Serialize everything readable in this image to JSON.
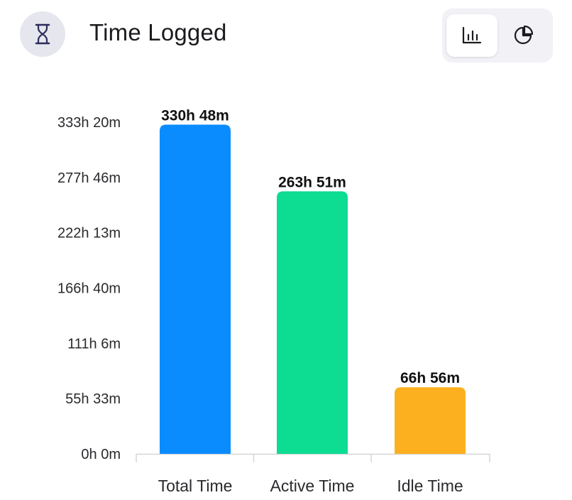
{
  "header": {
    "title": "Time Logged",
    "title_icon": "hourglass-icon",
    "toggle": {
      "options": [
        {
          "icon": "bar-chart-icon",
          "active": true
        },
        {
          "icon": "pie-chart-icon",
          "active": false
        }
      ]
    }
  },
  "colors": {
    "total": "#0a8cff",
    "active": "#0ddc93",
    "idle": "#fcb01f"
  },
  "chart_data": {
    "type": "bar",
    "categories": [
      "Total Time",
      "Active Time",
      "Idle Time"
    ],
    "values": [
      19848,
      15831,
      4016
    ],
    "value_labels": [
      "330h 48m",
      "263h 51m",
      "66h 56m"
    ],
    "unit": "minutes",
    "y_ticks": [
      0,
      3333,
      6666,
      9999,
      13333,
      16666,
      20000
    ],
    "y_tick_labels": [
      "0h 0m",
      "55h 33m",
      "111h 6m",
      "166h 40m",
      "222h 13m",
      "277h 46m",
      "333h 20m"
    ],
    "ylim": [
      0,
      20000
    ],
    "grid": false,
    "legend": "none"
  }
}
